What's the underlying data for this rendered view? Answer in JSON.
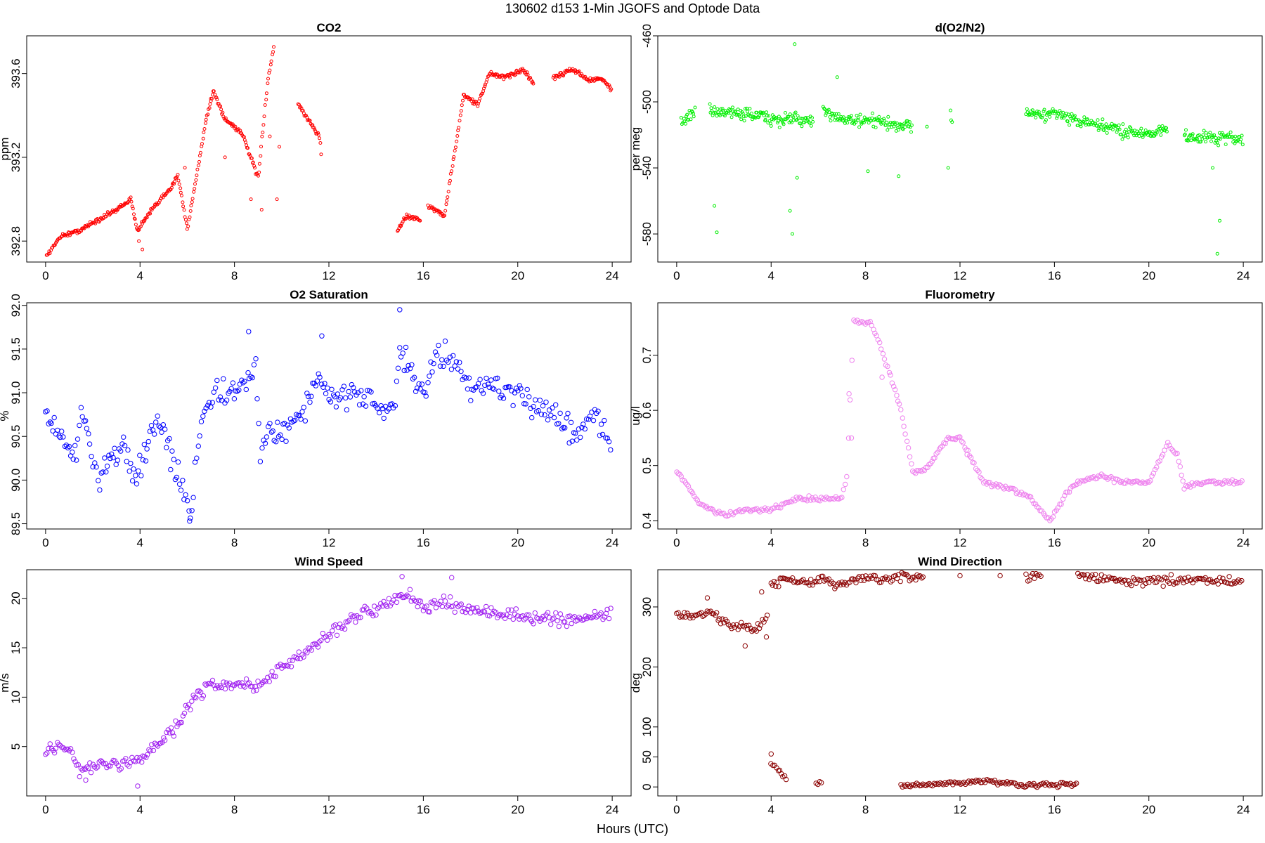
{
  "figure": {
    "title": "130602   d153   1-Min  JGOFS and Optode Data",
    "xlabel": "Hours (UTC)"
  },
  "chart_data": [
    {
      "type": "scatter",
      "title": "CO2",
      "ylabel": "ppm",
      "color": "#ff0000",
      "xlim": [
        -0.8,
        24.8
      ],
      "ylim": [
        392.7,
        393.78
      ],
      "xticks": [
        0,
        4,
        8,
        12,
        16,
        20,
        24
      ],
      "yticks": [
        392.8,
        393.2,
        393.6
      ],
      "segments": [
        [
          0.05,
          392.73
        ],
        [
          0.6,
          392.82
        ],
        [
          1.4,
          392.85
        ],
        [
          3.0,
          392.95
        ],
        [
          3.6,
          393.0
        ],
        [
          3.9,
          392.85
        ],
        [
          4.5,
          392.95
        ],
        [
          5.3,
          393.05
        ],
        [
          5.6,
          393.12
        ],
        [
          6.0,
          392.86
        ],
        [
          6.3,
          393.05
        ],
        [
          6.8,
          393.38
        ],
        [
          7.1,
          393.52
        ],
        [
          7.6,
          393.38
        ],
        [
          8.3,
          393.32
        ],
        [
          9.0,
          393.1
        ],
        [
          9.4,
          393.55
        ],
        [
          9.7,
          393.75
        ],
        [
          null,
          null
        ],
        [
          10.7,
          393.45
        ],
        [
          11.6,
          393.3
        ],
        [
          11.7,
          393.18
        ],
        [
          null,
          null
        ],
        [
          14.9,
          392.85
        ],
        [
          15.3,
          392.92
        ],
        [
          15.9,
          392.9
        ],
        [
          null,
          null
        ],
        [
          16.2,
          392.97
        ],
        [
          16.9,
          392.92
        ],
        [
          17.5,
          393.35
        ],
        [
          17.7,
          393.5
        ],
        [
          18.3,
          393.45
        ],
        [
          18.8,
          393.6
        ],
        [
          19.5,
          393.58
        ],
        [
          20.2,
          393.62
        ],
        [
          20.7,
          393.55
        ],
        [
          null,
          null
        ],
        [
          21.5,
          393.58
        ],
        [
          22.3,
          393.62
        ],
        [
          23.0,
          393.57
        ],
        [
          23.6,
          393.57
        ],
        [
          24.0,
          393.52
        ]
      ],
      "outliers": [
        [
          9.8,
          393.0
        ],
        [
          9.5,
          393.3
        ],
        [
          9.9,
          393.25
        ],
        [
          8.7,
          393.0
        ],
        [
          9.15,
          392.95
        ],
        [
          7.0,
          393.48
        ],
        [
          7.6,
          393.2
        ],
        [
          5.9,
          393.15
        ],
        [
          4.1,
          392.76
        ],
        [
          3.95,
          392.8
        ]
      ]
    },
    {
      "type": "scatter",
      "title": "d(O2/N2)",
      "ylabel": "per meg",
      "color": "#00ee00",
      "xlim": [
        -0.8,
        24.8
      ],
      "ylim": [
        -597,
        -460
      ],
      "xticks": [
        0,
        4,
        8,
        12,
        16,
        20,
        24
      ],
      "yticks": [
        -580,
        -540,
        -500,
        -460
      ],
      "segments": [
        [
          0.2,
          -512
        ],
        [
          0.8,
          -505
        ],
        [
          null,
          null
        ],
        [
          1.4,
          -506
        ],
        [
          3.0,
          -507
        ],
        [
          4.2,
          -511
        ],
        [
          5.0,
          -510
        ],
        [
          5.8,
          -513
        ],
        [
          null,
          null
        ],
        [
          6.2,
          -506
        ],
        [
          7.5,
          -512
        ],
        [
          8.5,
          -512
        ],
        [
          9.5,
          -515
        ],
        [
          10.0,
          -514
        ],
        [
          null,
          null
        ],
        [
          11.6,
          -505
        ],
        [
          11.7,
          -515
        ],
        [
          null,
          null
        ],
        [
          14.8,
          -508
        ],
        [
          16.0,
          -507
        ],
        [
          17.0,
          -512
        ],
        [
          18.0,
          -515
        ],
        [
          19.0,
          -518
        ],
        [
          20.0,
          -519
        ],
        [
          20.8,
          -516
        ],
        [
          null,
          null
        ],
        [
          21.5,
          -521
        ],
        [
          23.0,
          -522
        ],
        [
          24.0,
          -522
        ]
      ],
      "outliers": [
        [
          5.0,
          -465
        ],
        [
          1.6,
          -563
        ],
        [
          1.7,
          -579
        ],
        [
          4.9,
          -580
        ],
        [
          4.8,
          -566
        ],
        [
          5.1,
          -546
        ],
        [
          11.5,
          -540
        ],
        [
          22.9,
          -592
        ],
        [
          23.0,
          -572
        ],
        [
          22.7,
          -540
        ],
        [
          8.1,
          -542
        ],
        [
          9.4,
          -545
        ],
        [
          6.8,
          -485
        ],
        [
          10.6,
          -515
        ]
      ]
    },
    {
      "type": "scatter",
      "title": "O2 Saturation",
      "ylabel": "%",
      "color": "#0000ff",
      "xlim": [
        -0.8,
        24.8
      ],
      "ylim": [
        89.44,
        92.03
      ],
      "xticks": [
        0,
        4,
        8,
        12,
        16,
        20,
        24
      ],
      "yticks": [
        89.5,
        90.0,
        90.5,
        91.0,
        91.5,
        92.0
      ],
      "segments": [
        [
          0,
          90.75
        ],
        [
          0.5,
          90.5
        ],
        [
          1.0,
          90.4
        ],
        [
          1.3,
          90.25
        ],
        [
          1.5,
          90.8
        ],
        [
          2.0,
          90.3
        ],
        [
          2.3,
          90.0
        ],
        [
          2.8,
          90.3
        ],
        [
          3.3,
          90.4
        ],
        [
          3.8,
          90.0
        ],
        [
          4.3,
          90.4
        ],
        [
          4.8,
          90.7
        ],
        [
          5.3,
          90.3
        ],
        [
          5.8,
          89.85
        ],
        [
          6.2,
          89.65
        ],
        [
          6.4,
          90.35
        ],
        [
          6.8,
          90.85
        ],
        [
          7.2,
          91.0
        ],
        [
          7.8,
          90.95
        ],
        [
          8.3,
          91.1
        ],
        [
          8.9,
          91.2
        ],
        [
          9.1,
          90.3
        ],
        [
          9.5,
          90.6
        ],
        [
          10.0,
          90.5
        ],
        [
          10.5,
          90.7
        ],
        [
          11.0,
          90.85
        ],
        [
          11.5,
          91.2
        ],
        [
          12.0,
          90.95
        ],
        [
          12.5,
          91.0
        ],
        [
          13.5,
          90.95
        ],
        [
          14.2,
          90.85
        ],
        [
          14.8,
          90.8
        ],
        [
          15.0,
          91.5
        ],
        [
          15.5,
          91.2
        ],
        [
          16.0,
          90.95
        ],
        [
          16.5,
          91.45
        ],
        [
          17.2,
          91.4
        ],
        [
          18.0,
          91.05
        ],
        [
          19.0,
          91.1
        ],
        [
          20.0,
          90.95
        ],
        [
          21.0,
          90.85
        ],
        [
          22.0,
          90.65
        ],
        [
          22.5,
          90.55
        ],
        [
          23.2,
          90.75
        ],
        [
          24.0,
          90.45
        ]
      ],
      "outliers": [
        [
          6.1,
          89.53
        ],
        [
          15.0,
          91.95
        ],
        [
          11.7,
          91.65
        ],
        [
          8.6,
          91.7
        ]
      ]
    },
    {
      "type": "scatter",
      "title": "Fluorometry",
      "ylabel": "ug/l",
      "color": "#ee82ee",
      "xlim": [
        -0.8,
        24.8
      ],
      "ylim": [
        0.385,
        0.795
      ],
      "xticks": [
        0,
        4,
        8,
        12,
        16,
        20,
        24
      ],
      "yticks": [
        0.4,
        0.5,
        0.6,
        0.7
      ],
      "segments": [
        [
          0,
          0.49
        ],
        [
          0.5,
          0.46
        ],
        [
          1.0,
          0.43
        ],
        [
          2.0,
          0.41
        ],
        [
          3.0,
          0.42
        ],
        [
          4.0,
          0.42
        ],
        [
          5.0,
          0.44
        ],
        [
          6.0,
          0.44
        ],
        [
          7.0,
          0.44
        ],
        [
          7.2,
          0.48
        ],
        [
          7.5,
          0.76
        ],
        [
          8.2,
          0.76
        ],
        [
          8.6,
          0.72
        ],
        [
          9.0,
          0.67
        ],
        [
          9.5,
          0.6
        ],
        [
          10.0,
          0.49
        ],
        [
          10.5,
          0.49
        ],
        [
          11.0,
          0.52
        ],
        [
          11.5,
          0.55
        ],
        [
          12.0,
          0.55
        ],
        [
          13.0,
          0.47
        ],
        [
          14.0,
          0.46
        ],
        [
          15.0,
          0.44
        ],
        [
          15.8,
          0.4
        ],
        [
          16.5,
          0.45
        ],
        [
          17.0,
          0.47
        ],
        [
          18.0,
          0.48
        ],
        [
          19.0,
          0.47
        ],
        [
          20.0,
          0.47
        ],
        [
          20.8,
          0.54
        ],
        [
          21.2,
          0.52
        ],
        [
          21.5,
          0.46
        ],
        [
          22.5,
          0.47
        ],
        [
          24.0,
          0.47
        ]
      ],
      "outliers": [
        [
          7.4,
          0.55
        ],
        [
          7.3,
          0.63
        ],
        [
          8.7,
          0.66
        ],
        [
          12.3,
          0.52
        ]
      ]
    },
    {
      "type": "scatter",
      "title": "Wind Speed",
      "ylabel": "m/s",
      "color": "#a020f0",
      "xlim": [
        -0.8,
        24.8
      ],
      "ylim": [
        0,
        22.9
      ],
      "xticks": [
        0,
        4,
        8,
        12,
        16,
        20,
        24
      ],
      "yticks": [
        5,
        10,
        15,
        20
      ],
      "segments": [
        [
          0,
          4.2
        ],
        [
          0.5,
          5.2
        ],
        [
          1.0,
          5.0
        ],
        [
          1.5,
          2.5
        ],
        [
          2.0,
          3.0
        ],
        [
          3.0,
          3.2
        ],
        [
          4.0,
          3.5
        ],
        [
          4.5,
          5.0
        ],
        [
          5.0,
          5.5
        ],
        [
          5.5,
          7.0
        ],
        [
          6.0,
          9.0
        ],
        [
          6.5,
          10.5
        ],
        [
          7.0,
          11.2
        ],
        [
          8.0,
          11.0
        ],
        [
          8.5,
          11.5
        ],
        [
          9.0,
          11.0
        ],
        [
          10.0,
          13.0
        ],
        [
          11.0,
          14.5
        ],
        [
          12.0,
          16.5
        ],
        [
          13.0,
          18.0
        ],
        [
          14.0,
          19.0
        ],
        [
          15.0,
          20.0
        ],
        [
          15.5,
          20.5
        ],
        [
          16.0,
          19.0
        ],
        [
          17.0,
          19.5
        ],
        [
          18.0,
          19.0
        ],
        [
          19.0,
          18.5
        ],
        [
          20.0,
          18.2
        ],
        [
          21.0,
          18.0
        ],
        [
          22.0,
          17.8
        ],
        [
          23.0,
          18.0
        ],
        [
          24.0,
          18.5
        ]
      ],
      "outliers": [
        [
          3.9,
          1.0
        ],
        [
          15.1,
          22.2
        ],
        [
          17.2,
          22.1
        ],
        [
          1.7,
          1.6
        ]
      ]
    },
    {
      "type": "scatter",
      "title": "Wind Direction",
      "ylabel": "deg",
      "color": "#8b0000",
      "xlim": [
        -0.8,
        24.8
      ],
      "ylim": [
        -15,
        362
      ],
      "xticks": [
        0,
        4,
        8,
        12,
        16,
        20,
        24
      ],
      "yticks": [
        0,
        50,
        100,
        200,
        300
      ],
      "segments": [
        [
          0,
          290
        ],
        [
          0.7,
          285
        ],
        [
          1.5,
          290
        ],
        [
          2.0,
          275
        ],
        [
          3.0,
          265
        ],
        [
          3.5,
          265
        ],
        [
          3.9,
          290
        ],
        [
          null,
          null
        ],
        [
          4.0,
          340
        ],
        [
          4.5,
          345
        ],
        [
          5.5,
          340
        ],
        [
          6.0,
          345
        ],
        [
          6.5,
          340
        ],
        [
          7.0,
          340
        ],
        [
          8.0,
          345
        ],
        [
          9.0,
          345
        ],
        [
          10.0,
          350
        ],
        [
          10.5,
          352
        ],
        [
          null,
          null
        ],
        [
          14.8,
          350
        ],
        [
          15.5,
          350
        ],
        [
          null,
          null
        ],
        [
          17.0,
          352
        ],
        [
          18.0,
          347
        ],
        [
          19.0,
          343
        ],
        [
          20.0,
          343
        ],
        [
          21.0,
          345
        ],
        [
          22.0,
          345
        ],
        [
          23.0,
          344
        ],
        [
          24.0,
          343
        ]
      ],
      "low_segments": [
        [
          4.0,
          40
        ],
        [
          4.3,
          30
        ],
        [
          4.7,
          10
        ],
        [
          null,
          null
        ],
        [
          5.9,
          5
        ],
        [
          6.2,
          5
        ],
        [
          null,
          null
        ],
        [
          9.5,
          2
        ],
        [
          10.5,
          3
        ],
        [
          11.5,
          6
        ],
        [
          12.5,
          9
        ],
        [
          13.0,
          10
        ],
        [
          14.0,
          6
        ],
        [
          15.0,
          3
        ],
        [
          16.0,
          4
        ],
        [
          17.0,
          3
        ]
      ],
      "outliers": [
        [
          4.0,
          55
        ],
        [
          3.8,
          250
        ],
        [
          2.9,
          235
        ],
        [
          1.3,
          315
        ],
        [
          13.7,
          352
        ],
        [
          12.0,
          352
        ],
        [
          3.6,
          325
        ]
      ]
    }
  ]
}
